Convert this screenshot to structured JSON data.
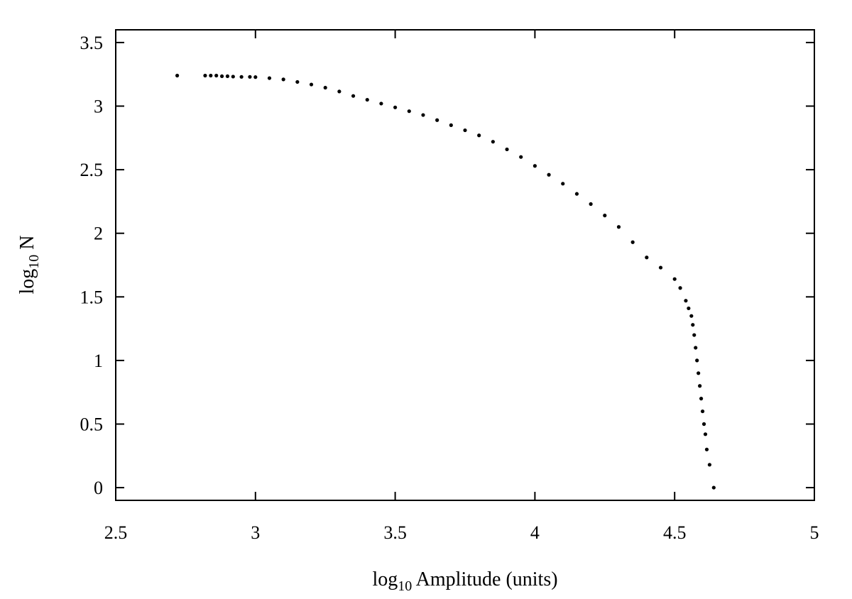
{
  "chart_data": {
    "type": "scatter",
    "title": "",
    "xlabel": {
      "prefix": "log",
      "sub": "10",
      "suffix": " Amplitude (units)"
    },
    "ylabel": {
      "prefix": "log",
      "sub": "10",
      "suffix": " N"
    },
    "xlim": [
      2.5,
      5
    ],
    "ylim": [
      -0.1,
      3.6
    ],
    "xticks": [
      2.5,
      3,
      3.5,
      4,
      4.5,
      5
    ],
    "xtick_labels": [
      "2.5",
      "3",
      "3.5",
      "4",
      "4.5",
      "5"
    ],
    "yticks": [
      0,
      0.5,
      1,
      1.5,
      2,
      2.5,
      3,
      3.5
    ],
    "ytick_labels": [
      "0",
      "0.5",
      "1",
      "1.5",
      "2",
      "2.5",
      "3",
      "3.5"
    ],
    "grid": false,
    "legend": "none",
    "marker_color": "#000000",
    "points": {
      "x": [
        2.72,
        2.82,
        2.84,
        2.86,
        2.88,
        2.9,
        2.92,
        2.95,
        2.98,
        3.0,
        3.05,
        3.1,
        3.15,
        3.2,
        3.25,
        3.3,
        3.35,
        3.4,
        3.45,
        3.5,
        3.55,
        3.6,
        3.65,
        3.7,
        3.75,
        3.8,
        3.85,
        3.9,
        3.95,
        4.0,
        4.05,
        4.1,
        4.15,
        4.2,
        4.25,
        4.3,
        4.35,
        4.4,
        4.45,
        4.5,
        4.52,
        4.54,
        4.55,
        4.56,
        4.565,
        4.57,
        4.575,
        4.58,
        4.585,
        4.59,
        4.595,
        4.6,
        4.605,
        4.61,
        4.615,
        4.625,
        4.64
      ],
      "y": [
        3.24,
        3.24,
        3.24,
        3.24,
        3.235,
        3.235,
        3.232,
        3.23,
        3.23,
        3.228,
        3.22,
        3.21,
        3.19,
        3.17,
        3.145,
        3.115,
        3.08,
        3.05,
        3.02,
        2.99,
        2.96,
        2.93,
        2.89,
        2.85,
        2.81,
        2.77,
        2.72,
        2.66,
        2.6,
        2.53,
        2.46,
        2.39,
        2.31,
        2.23,
        2.14,
        2.05,
        1.93,
        1.81,
        1.73,
        1.64,
        1.57,
        1.47,
        1.41,
        1.35,
        1.28,
        1.2,
        1.1,
        1.0,
        0.9,
        0.8,
        0.7,
        0.6,
        0.5,
        0.42,
        0.3,
        0.18,
        0.0
      ]
    }
  }
}
